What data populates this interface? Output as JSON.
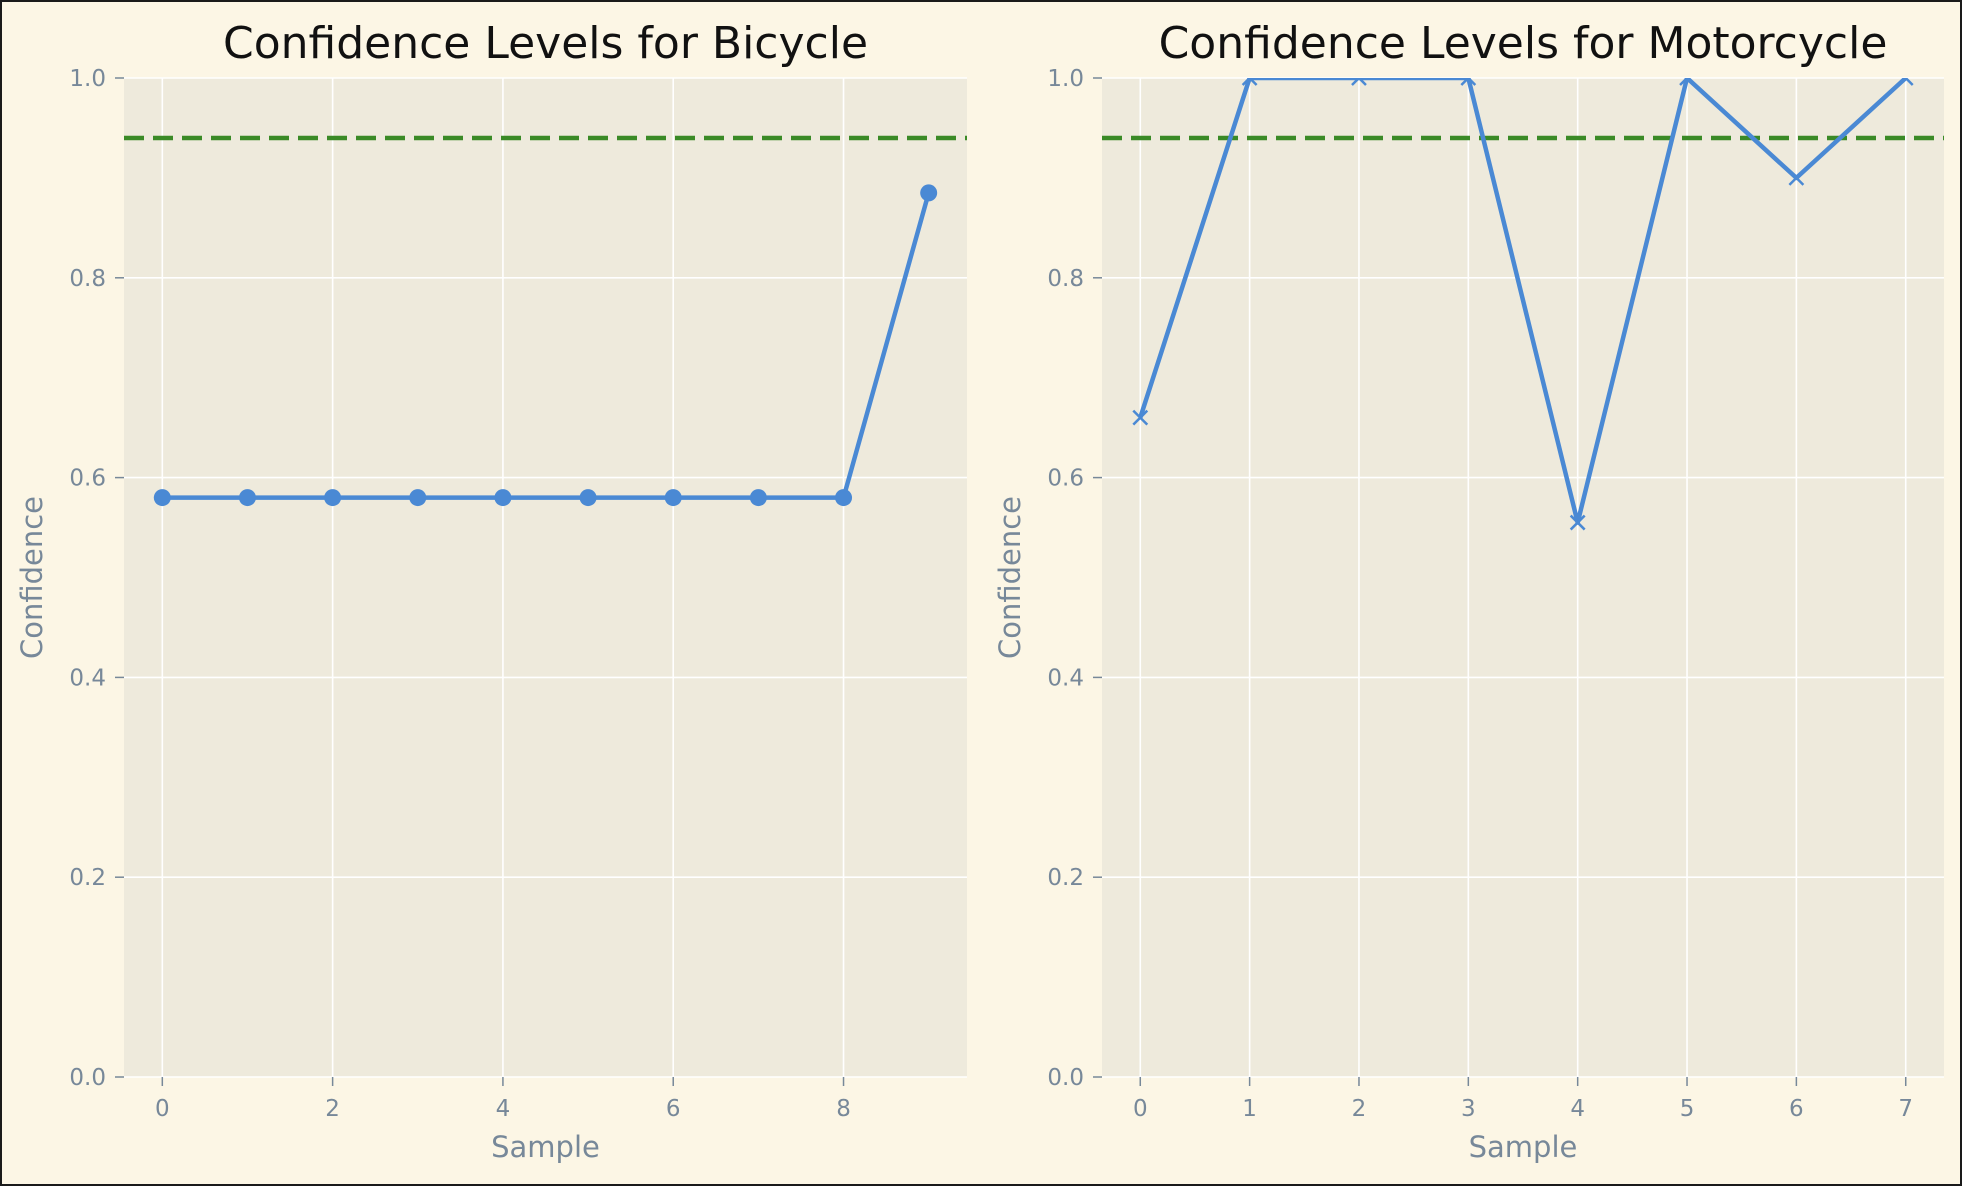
{
  "charts": [
    {
      "type": "line",
      "title": "Confidence Levels for Bicycle",
      "xlabel": "Sample",
      "ylabel": "Confidence",
      "marker": "circle",
      "xlim": [
        -0.45,
        9.45
      ],
      "ylim": [
        0.0,
        1.0
      ],
      "xticks": [
        0,
        2,
        4,
        6,
        8
      ],
      "yticks": [
        0.0,
        0.2,
        0.4,
        0.6,
        0.8,
        1.0
      ],
      "threshold": 0.94,
      "x": [
        0,
        1,
        2,
        3,
        4,
        5,
        6,
        7,
        8,
        9
      ],
      "values": [
        0.58,
        0.58,
        0.58,
        0.58,
        0.58,
        0.58,
        0.58,
        0.58,
        0.58,
        0.885
      ]
    },
    {
      "type": "line",
      "title": "Confidence Levels for Motorcycle",
      "xlabel": "Sample",
      "ylabel": "Confidence",
      "marker": "x",
      "xlim": [
        -0.35,
        7.35
      ],
      "ylim": [
        0.0,
        1.0
      ],
      "xticks": [
        0,
        1,
        2,
        3,
        4,
        5,
        6,
        7
      ],
      "yticks": [
        0.0,
        0.2,
        0.4,
        0.6,
        0.8,
        1.0
      ],
      "threshold": 0.94,
      "x": [
        0,
        1,
        2,
        3,
        4,
        5,
        6,
        7
      ],
      "values": [
        0.66,
        1.0,
        1.0,
        1.0,
        0.555,
        1.0,
        0.9,
        1.0
      ]
    }
  ],
  "colors": {
    "line": "#4a89d4",
    "threshold": "#3a8a26",
    "axes_bg": "#eeeadc",
    "figure_bg": "#fcf6e5",
    "grid": "#ffffff",
    "tick_text": "#778899",
    "title_text": "#111111"
  }
}
